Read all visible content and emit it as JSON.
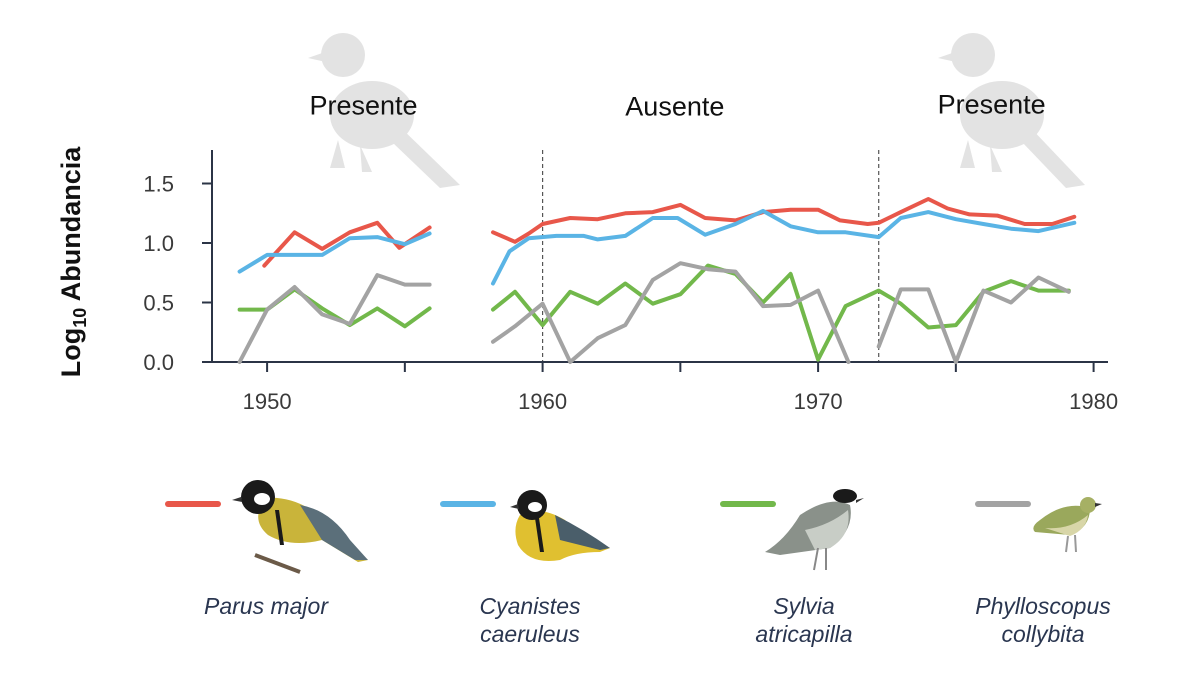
{
  "chart_data": {
    "type": "line",
    "title": "",
    "xlabel": "",
    "ylabel_main": "Log",
    "ylabel_sub": "10",
    "ylabel_rest": " Abundancia",
    "xlim": [
      1948,
      1980.5
    ],
    "ylim": [
      0,
      1.75
    ],
    "x_ticks": [
      1950,
      1960,
      1970,
      1980
    ],
    "x_minor_ticks": [
      1955,
      1965,
      1975
    ],
    "y_ticks": [
      {
        "value": 0.0,
        "label": "0.0"
      },
      {
        "value": 0.5,
        "label": "0.5"
      },
      {
        "value": 1.0,
        "label": "1.0"
      },
      {
        "value": 1.5,
        "label": "1.5"
      }
    ],
    "periods": [
      {
        "label": "Presente",
        "x_center": 1953.5,
        "y_value": 2.08
      },
      {
        "label": "Ausente",
        "x_center": 1964.8,
        "y_value": 2.07
      },
      {
        "label": "Presente",
        "x_center": 1976.3,
        "y_value": 2.09
      }
    ],
    "boundaries": [
      1960,
      1972.2
    ],
    "series": [
      {
        "name": "Parus major",
        "color": "#e8574a",
        "segments": [
          [
            [
              1949.9,
              0.81
            ],
            [
              1951,
              1.09
            ],
            [
              1952,
              0.95
            ],
            [
              1953,
              1.09
            ],
            [
              1954,
              1.17
            ],
            [
              1954.8,
              0.96
            ],
            [
              1955.9,
              1.13
            ]
          ],
          [
            [
              1958.2,
              1.09
            ],
            [
              1959,
              1.01
            ],
            [
              1959.5,
              1.08
            ],
            [
              1960,
              1.16
            ],
            [
              1961,
              1.21
            ],
            [
              1962,
              1.2
            ],
            [
              1963,
              1.25
            ],
            [
              1964,
              1.26
            ],
            [
              1965,
              1.32
            ],
            [
              1965.9,
              1.21
            ],
            [
              1967,
              1.19
            ],
            [
              1968,
              1.26
            ],
            [
              1969,
              1.28
            ],
            [
              1970,
              1.28
            ],
            [
              1970.8,
              1.19
            ],
            [
              1971.8,
              1.16
            ],
            [
              1972.2,
              1.17
            ],
            [
              1973,
              1.26
            ],
            [
              1974,
              1.37
            ],
            [
              1974.7,
              1.29
            ],
            [
              1975.5,
              1.24
            ],
            [
              1976.5,
              1.23
            ],
            [
              1977.5,
              1.16
            ],
            [
              1978.5,
              1.16
            ],
            [
              1979.3,
              1.22
            ]
          ]
        ]
      },
      {
        "name": "Cyanistes caeruleus",
        "color": "#5ab4e5",
        "segments": [
          [
            [
              1949,
              0.76
            ],
            [
              1950,
              0.9
            ],
            [
              1951,
              0.9
            ],
            [
              1952,
              0.9
            ],
            [
              1953,
              1.04
            ],
            [
              1954,
              1.05
            ],
            [
              1955,
              0.99
            ],
            [
              1955.9,
              1.08
            ]
          ],
          [
            [
              1958.2,
              0.66
            ],
            [
              1958.8,
              0.93
            ],
            [
              1959.5,
              1.04
            ],
            [
              1960.5,
              1.06
            ],
            [
              1961.5,
              1.06
            ],
            [
              1962,
              1.03
            ],
            [
              1963,
              1.06
            ],
            [
              1964,
              1.21
            ],
            [
              1964.9,
              1.21
            ],
            [
              1965.9,
              1.07
            ],
            [
              1967,
              1.16
            ],
            [
              1968,
              1.27
            ],
            [
              1969,
              1.14
            ],
            [
              1970,
              1.09
            ],
            [
              1971,
              1.09
            ],
            [
              1972.2,
              1.05
            ],
            [
              1973,
              1.21
            ],
            [
              1974,
              1.26
            ],
            [
              1975,
              1.2
            ],
            [
              1976,
              1.16
            ],
            [
              1977,
              1.12
            ],
            [
              1978,
              1.1
            ],
            [
              1979.3,
              1.17
            ]
          ]
        ]
      },
      {
        "name": "Sylvia atricapilla",
        "color": "#72b84b",
        "segments": [
          [
            [
              1949,
              0.44
            ],
            [
              1950,
              0.44
            ],
            [
              1951,
              0.61
            ],
            [
              1952,
              0.45
            ],
            [
              1953,
              0.31
            ],
            [
              1954,
              0.45
            ],
            [
              1955,
              0.3
            ],
            [
              1955.9,
              0.45
            ]
          ],
          [
            [
              1958.2,
              0.44
            ],
            [
              1959,
              0.59
            ],
            [
              1960,
              0.31
            ],
            [
              1961,
              0.59
            ],
            [
              1962,
              0.49
            ],
            [
              1963,
              0.66
            ],
            [
              1964,
              0.49
            ],
            [
              1965,
              0.57
            ],
            [
              1966,
              0.81
            ],
            [
              1967,
              0.74
            ],
            [
              1968,
              0.5
            ],
            [
              1969,
              0.74
            ],
            [
              1970,
              0.02
            ],
            [
              1971,
              0.47
            ],
            [
              1972.2,
              0.6
            ],
            [
              1973,
              0.49
            ],
            [
              1974,
              0.29
            ],
            [
              1975,
              0.31
            ],
            [
              1976,
              0.59
            ],
            [
              1977,
              0.68
            ],
            [
              1978,
              0.6
            ],
            [
              1979.1,
              0.6
            ]
          ]
        ]
      },
      {
        "name": "Phylloscopus collybita",
        "color": "#a3a3a3",
        "segments": [
          [
            [
              1949,
              0.0
            ],
            [
              1950,
              0.44
            ],
            [
              1951,
              0.63
            ],
            [
              1952,
              0.4
            ],
            [
              1953,
              0.32
            ],
            [
              1954,
              0.73
            ],
            [
              1955,
              0.65
            ],
            [
              1955.9,
              0.65
            ]
          ],
          [
            [
              1958.2,
              0.17
            ],
            [
              1959,
              0.3
            ],
            [
              1960,
              0.49
            ],
            [
              1961,
              0.0
            ],
            [
              1962,
              0.2
            ],
            [
              1963,
              0.31
            ],
            [
              1964,
              0.69
            ],
            [
              1965,
              0.83
            ],
            [
              1966,
              0.78
            ],
            [
              1967,
              0.76
            ],
            [
              1968,
              0.47
            ],
            [
              1969,
              0.48
            ],
            [
              1970,
              0.6
            ],
            [
              1971.1,
              0.0
            ]
          ],
          [
            [
              1972.2,
              0.13
            ],
            [
              1973,
              0.61
            ],
            [
              1974,
              0.61
            ],
            [
              1975,
              0.0
            ],
            [
              1976,
              0.6
            ],
            [
              1977,
              0.5
            ],
            [
              1978,
              0.71
            ],
            [
              1979.1,
              0.59
            ]
          ]
        ]
      }
    ]
  },
  "legend": [
    {
      "name": "Parus major",
      "display": "Parus major",
      "color": "#e8574a"
    },
    {
      "name": "Cyanistes caeruleus",
      "display": "Cyanistes\ncaeruleus",
      "color": "#5ab4e5"
    },
    {
      "name": "Sylvia atricapilla",
      "display": "Sylvia\natricapilla",
      "color": "#72b84b"
    },
    {
      "name": "Phylloscopus collybita",
      "display": "Phylloscopus\ncollybita",
      "color": "#a3a3a3"
    }
  ]
}
